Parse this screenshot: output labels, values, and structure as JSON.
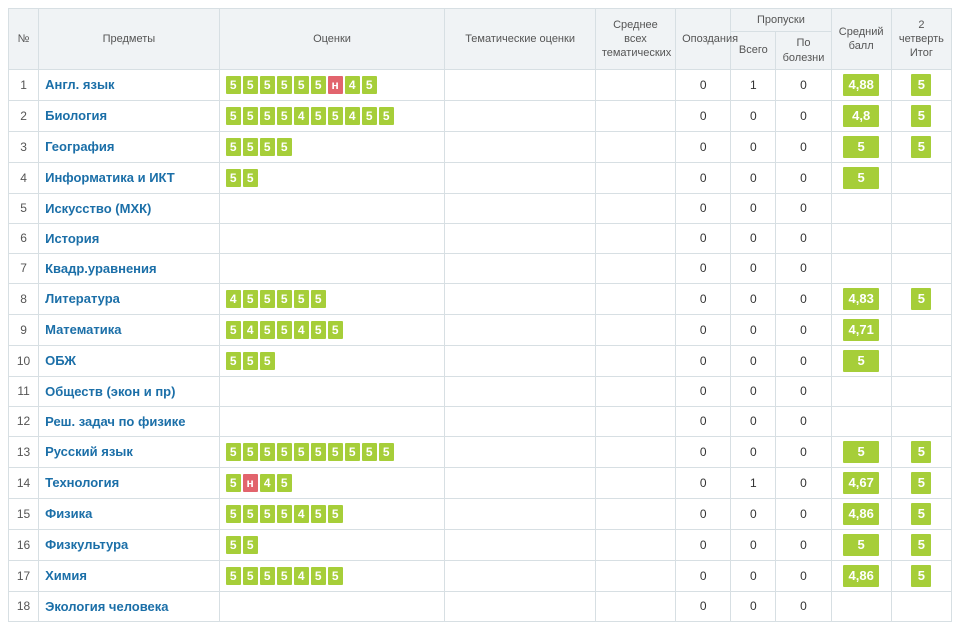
{
  "header": {
    "num": "№",
    "subjects": "Предметы",
    "grades": "Оценки",
    "thematic": "Тематические оценки",
    "avg_thematic": "Среднее всех тематических",
    "lateness": "Опоздания",
    "absences": "Пропуски",
    "abs_total": "Всего",
    "abs_illness": "По болезни",
    "avg_score": "Средний балл",
    "quarter": "2 четверть Итог"
  },
  "colors": {
    "green": "#a6ce39",
    "red": "#e2646d",
    "link": "#1b6fa8",
    "border": "#d7dfe3",
    "th_bg": "#f0f3f5"
  },
  "rows": [
    {
      "n": 1,
      "subject": "Англ. язык",
      "grades": [
        {
          "v": "5",
          "c": "green"
        },
        {
          "v": "5",
          "c": "green"
        },
        {
          "v": "5",
          "c": "green"
        },
        {
          "v": "5",
          "c": "green"
        },
        {
          "v": "5",
          "c": "green"
        },
        {
          "v": "5",
          "c": "green"
        },
        {
          "v": "н",
          "c": "red"
        },
        {
          "v": "4",
          "c": "green"
        },
        {
          "v": "5",
          "c": "green"
        }
      ],
      "late": 0,
      "abs_total": 1,
      "abs_ill": 0,
      "avg": "4,88",
      "itog": "5"
    },
    {
      "n": 2,
      "subject": "Биология",
      "grades": [
        {
          "v": "5",
          "c": "green"
        },
        {
          "v": "5",
          "c": "green"
        },
        {
          "v": "5",
          "c": "green"
        },
        {
          "v": "5",
          "c": "green"
        },
        {
          "v": "4",
          "c": "green"
        },
        {
          "v": "5",
          "c": "green"
        },
        {
          "v": "5",
          "c": "green"
        },
        {
          "v": "4",
          "c": "green"
        },
        {
          "v": "5",
          "c": "green"
        },
        {
          "v": "5",
          "c": "green"
        }
      ],
      "late": 0,
      "abs_total": 0,
      "abs_ill": 0,
      "avg": "4,8",
      "itog": "5"
    },
    {
      "n": 3,
      "subject": "География",
      "grades": [
        {
          "v": "5",
          "c": "green"
        },
        {
          "v": "5",
          "c": "green"
        },
        {
          "v": "5",
          "c": "green"
        },
        {
          "v": "5",
          "c": "green"
        }
      ],
      "late": 0,
      "abs_total": 0,
      "abs_ill": 0,
      "avg": "5",
      "itog": "5"
    },
    {
      "n": 4,
      "subject": "Информатика и ИКТ",
      "grades": [
        {
          "v": "5",
          "c": "green"
        },
        {
          "v": "5",
          "c": "green"
        }
      ],
      "late": 0,
      "abs_total": 0,
      "abs_ill": 0,
      "avg": "5",
      "itog": ""
    },
    {
      "n": 5,
      "subject": "Искусство (МХК)",
      "grades": [],
      "late": 0,
      "abs_total": 0,
      "abs_ill": 0,
      "avg": "",
      "itog": ""
    },
    {
      "n": 6,
      "subject": "История",
      "grades": [],
      "late": 0,
      "abs_total": 0,
      "abs_ill": 0,
      "avg": "",
      "itog": ""
    },
    {
      "n": 7,
      "subject": "Квадр.уравнения",
      "grades": [],
      "late": 0,
      "abs_total": 0,
      "abs_ill": 0,
      "avg": "",
      "itog": ""
    },
    {
      "n": 8,
      "subject": "Литература",
      "grades": [
        {
          "v": "4",
          "c": "green"
        },
        {
          "v": "5",
          "c": "green"
        },
        {
          "v": "5",
          "c": "green"
        },
        {
          "v": "5",
          "c": "green"
        },
        {
          "v": "5",
          "c": "green"
        },
        {
          "v": "5",
          "c": "green"
        }
      ],
      "late": 0,
      "abs_total": 0,
      "abs_ill": 0,
      "avg": "4,83",
      "itog": "5"
    },
    {
      "n": 9,
      "subject": "Математика",
      "grades": [
        {
          "v": "5",
          "c": "green"
        },
        {
          "v": "4",
          "c": "green"
        },
        {
          "v": "5",
          "c": "green"
        },
        {
          "v": "5",
          "c": "green"
        },
        {
          "v": "4",
          "c": "green"
        },
        {
          "v": "5",
          "c": "green"
        },
        {
          "v": "5",
          "c": "green"
        }
      ],
      "late": 0,
      "abs_total": 0,
      "abs_ill": 0,
      "avg": "4,71",
      "itog": ""
    },
    {
      "n": 10,
      "subject": "ОБЖ",
      "grades": [
        {
          "v": "5",
          "c": "green"
        },
        {
          "v": "5",
          "c": "green"
        },
        {
          "v": "5",
          "c": "green"
        }
      ],
      "late": 0,
      "abs_total": 0,
      "abs_ill": 0,
      "avg": "5",
      "itog": ""
    },
    {
      "n": 11,
      "subject": "Обществ (экон и пр)",
      "grades": [],
      "late": 0,
      "abs_total": 0,
      "abs_ill": 0,
      "avg": "",
      "itog": ""
    },
    {
      "n": 12,
      "subject": "Реш. задач по физике",
      "grades": [],
      "late": 0,
      "abs_total": 0,
      "abs_ill": 0,
      "avg": "",
      "itog": ""
    },
    {
      "n": 13,
      "subject": "Русский язык",
      "grades": [
        {
          "v": "5",
          "c": "green"
        },
        {
          "v": "5",
          "c": "green"
        },
        {
          "v": "5",
          "c": "green"
        },
        {
          "v": "5",
          "c": "green"
        },
        {
          "v": "5",
          "c": "green"
        },
        {
          "v": "5",
          "c": "green"
        },
        {
          "v": "5",
          "c": "green"
        },
        {
          "v": "5",
          "c": "green"
        },
        {
          "v": "5",
          "c": "green"
        },
        {
          "v": "5",
          "c": "green"
        }
      ],
      "late": 0,
      "abs_total": 0,
      "abs_ill": 0,
      "avg": "5",
      "itog": "5"
    },
    {
      "n": 14,
      "subject": "Технология",
      "grades": [
        {
          "v": "5",
          "c": "green"
        },
        {
          "v": "н",
          "c": "red"
        },
        {
          "v": "4",
          "c": "green"
        },
        {
          "v": "5",
          "c": "green"
        }
      ],
      "late": 0,
      "abs_total": 1,
      "abs_ill": 0,
      "avg": "4,67",
      "itog": "5"
    },
    {
      "n": 15,
      "subject": "Физика",
      "grades": [
        {
          "v": "5",
          "c": "green"
        },
        {
          "v": "5",
          "c": "green"
        },
        {
          "v": "5",
          "c": "green"
        },
        {
          "v": "5",
          "c": "green"
        },
        {
          "v": "4",
          "c": "green"
        },
        {
          "v": "5",
          "c": "green"
        },
        {
          "v": "5",
          "c": "green"
        }
      ],
      "late": 0,
      "abs_total": 0,
      "abs_ill": 0,
      "avg": "4,86",
      "itog": "5"
    },
    {
      "n": 16,
      "subject": "Физкультура",
      "grades": [
        {
          "v": "5",
          "c": "green"
        },
        {
          "v": "5",
          "c": "green"
        }
      ],
      "late": 0,
      "abs_total": 0,
      "abs_ill": 0,
      "avg": "5",
      "itog": "5"
    },
    {
      "n": 17,
      "subject": "Химия",
      "grades": [
        {
          "v": "5",
          "c": "green"
        },
        {
          "v": "5",
          "c": "green"
        },
        {
          "v": "5",
          "c": "green"
        },
        {
          "v": "5",
          "c": "green"
        },
        {
          "v": "4",
          "c": "green"
        },
        {
          "v": "5",
          "c": "green"
        },
        {
          "v": "5",
          "c": "green"
        }
      ],
      "late": 0,
      "abs_total": 0,
      "abs_ill": 0,
      "avg": "4,86",
      "itog": "5"
    },
    {
      "n": 18,
      "subject": "Экология человека",
      "grades": [],
      "late": 0,
      "abs_total": 0,
      "abs_ill": 0,
      "avg": "",
      "itog": ""
    }
  ]
}
